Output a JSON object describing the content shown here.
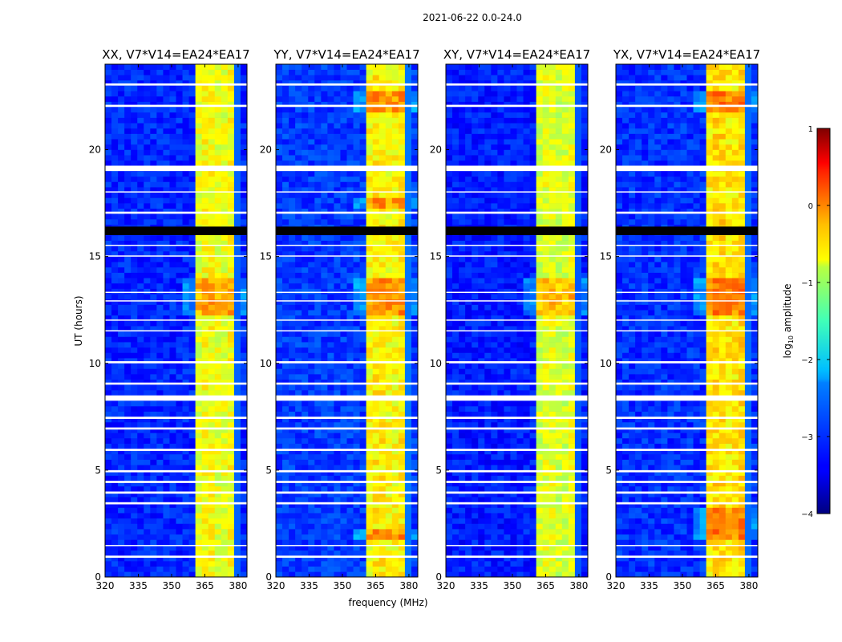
{
  "suptitle": "2021-06-22 0.0-24.0",
  "xlabel": "frequency (MHz)",
  "ylabel": "UT (hours)",
  "colorbar": {
    "label": "log$_{10}$ amplitude",
    "label_main": "log",
    "label_sub": "10",
    "label_rest": " amplitude",
    "min": -4,
    "max": 1,
    "ticks": [
      -4,
      -3,
      -2,
      -1,
      0,
      1
    ],
    "tick_labels": [
      "−4",
      "−3",
      "−2",
      "−1",
      "0",
      "1"
    ],
    "colormap": "jet"
  },
  "chart_data": [
    {
      "type": "heatmap",
      "title": "XX, V7*V14=EA24*EA17",
      "pol": "XX",
      "xlabel": "frequency (MHz)",
      "ylabel": "UT (hours)",
      "xlim": [
        320,
        384
      ],
      "ylim": [
        0,
        24
      ],
      "xticks": [
        320,
        335,
        350,
        365,
        380
      ],
      "yticks": [
        0,
        5,
        10,
        15,
        20
      ],
      "z_units": "log10 amplitude",
      "background_level": -3.2,
      "signal_band_mhz": [
        360,
        380
      ],
      "signal_level": -1.0,
      "bright_periods_hours": [
        [
          12.2,
          14.0
        ]
      ],
      "flagged_hours": [
        [
          0.9,
          1.0
        ],
        [
          1.45,
          1.5
        ],
        [
          3.4,
          3.5
        ],
        [
          3.9,
          4.0
        ],
        [
          4.4,
          4.5
        ],
        [
          4.9,
          5.0
        ],
        [
          5.9,
          6.0
        ],
        [
          6.9,
          7.0
        ],
        [
          7.4,
          7.5
        ],
        [
          8.25,
          8.5
        ],
        [
          9.0,
          9.1
        ],
        [
          10.0,
          10.1
        ],
        [
          11.5,
          11.55
        ],
        [
          12.0,
          12.05
        ],
        [
          12.9,
          12.95
        ],
        [
          13.3,
          13.35
        ],
        [
          15.0,
          15.05
        ],
        [
          15.5,
          15.55
        ],
        [
          16.0,
          16.4
        ],
        [
          17.0,
          17.1
        ],
        [
          18.0,
          18.05
        ],
        [
          19.0,
          19.25
        ],
        [
          22.0,
          22.1
        ],
        [
          23.0,
          23.1
        ]
      ]
    },
    {
      "type": "heatmap",
      "title": "YY, V7*V14=EA24*EA17",
      "pol": "YY",
      "xlabel": "frequency (MHz)",
      "ylabel": "UT (hours)",
      "xlim": [
        320,
        384
      ],
      "ylim": [
        0,
        24
      ],
      "xticks": [
        320,
        335,
        350,
        365,
        380
      ],
      "yticks": [
        0,
        5,
        10,
        15,
        20
      ],
      "z_units": "log10 amplitude",
      "background_level": -3.1,
      "signal_band_mhz": [
        360,
        380
      ],
      "signal_level": -0.9,
      "bright_periods_hours": [
        [
          12.2,
          14.0
        ],
        [
          1.8,
          2.2
        ],
        [
          21.8,
          22.8
        ],
        [
          17.2,
          17.8
        ]
      ],
      "flagged_hours": [
        [
          0.9,
          1.0
        ],
        [
          1.45,
          1.5
        ],
        [
          3.4,
          3.5
        ],
        [
          3.9,
          4.0
        ],
        [
          4.4,
          4.5
        ],
        [
          4.9,
          5.0
        ],
        [
          5.9,
          6.0
        ],
        [
          6.9,
          7.0
        ],
        [
          7.4,
          7.5
        ],
        [
          8.25,
          8.5
        ],
        [
          9.0,
          9.1
        ],
        [
          10.0,
          10.1
        ],
        [
          11.5,
          11.55
        ],
        [
          12.0,
          12.05
        ],
        [
          12.9,
          12.95
        ],
        [
          13.3,
          13.35
        ],
        [
          15.0,
          15.05
        ],
        [
          15.5,
          15.55
        ],
        [
          16.0,
          16.4
        ],
        [
          17.0,
          17.1
        ],
        [
          18.0,
          18.05
        ],
        [
          19.0,
          19.25
        ],
        [
          22.0,
          22.1
        ],
        [
          23.0,
          23.1
        ]
      ]
    },
    {
      "type": "heatmap",
      "title": "XY, V7*V14=EA24*EA17",
      "pol": "XY",
      "xlabel": "frequency (MHz)",
      "ylabel": "UT (hours)",
      "xlim": [
        320,
        384
      ],
      "ylim": [
        0,
        24
      ],
      "xticks": [
        320,
        335,
        350,
        365,
        380
      ],
      "yticks": [
        0,
        5,
        10,
        15,
        20
      ],
      "z_units": "log10 amplitude",
      "background_level": -3.25,
      "signal_band_mhz": [
        360,
        380
      ],
      "signal_level": -1.1,
      "bright_periods_hours": [
        [
          12.2,
          14.0
        ]
      ],
      "flagged_hours": [
        [
          0.9,
          1.0
        ],
        [
          1.45,
          1.5
        ],
        [
          3.4,
          3.5
        ],
        [
          3.9,
          4.0
        ],
        [
          4.4,
          4.5
        ],
        [
          4.9,
          5.0
        ],
        [
          5.9,
          6.0
        ],
        [
          6.9,
          7.0
        ],
        [
          7.4,
          7.5
        ],
        [
          8.25,
          8.5
        ],
        [
          9.0,
          9.1
        ],
        [
          10.0,
          10.1
        ],
        [
          11.5,
          11.55
        ],
        [
          12.0,
          12.05
        ],
        [
          12.9,
          12.95
        ],
        [
          13.3,
          13.35
        ],
        [
          15.0,
          15.05
        ],
        [
          15.5,
          15.55
        ],
        [
          16.0,
          16.4
        ],
        [
          17.0,
          17.1
        ],
        [
          18.0,
          18.05
        ],
        [
          19.0,
          19.25
        ],
        [
          22.0,
          22.1
        ],
        [
          23.0,
          23.1
        ]
      ]
    },
    {
      "type": "heatmap",
      "title": "YX, V7*V14=EA24*EA17",
      "pol": "YX",
      "xlabel": "frequency (MHz)",
      "ylabel": "UT (hours)",
      "xlim": [
        320,
        384
      ],
      "ylim": [
        0,
        24
      ],
      "xticks": [
        320,
        335,
        350,
        365,
        380
      ],
      "yticks": [
        0,
        5,
        10,
        15,
        20
      ],
      "z_units": "log10 amplitude",
      "background_level": -3.15,
      "signal_band_mhz": [
        360,
        380
      ],
      "signal_level": -0.8,
      "bright_periods_hours": [
        [
          12.2,
          14.0
        ],
        [
          1.8,
          3.2
        ],
        [
          21.8,
          22.8
        ]
      ],
      "flagged_hours": [
        [
          0.9,
          1.0
        ],
        [
          1.45,
          1.5
        ],
        [
          3.4,
          3.5
        ],
        [
          3.9,
          4.0
        ],
        [
          4.4,
          4.5
        ],
        [
          4.9,
          5.0
        ],
        [
          5.9,
          6.0
        ],
        [
          6.9,
          7.0
        ],
        [
          7.4,
          7.5
        ],
        [
          8.25,
          8.5
        ],
        [
          9.0,
          9.1
        ],
        [
          10.0,
          10.1
        ],
        [
          11.5,
          11.55
        ],
        [
          12.0,
          12.05
        ],
        [
          12.9,
          12.95
        ],
        [
          13.3,
          13.35
        ],
        [
          15.0,
          15.05
        ],
        [
          15.5,
          15.55
        ],
        [
          16.0,
          16.4
        ],
        [
          17.0,
          17.1
        ],
        [
          18.0,
          18.05
        ],
        [
          19.0,
          19.25
        ],
        [
          22.0,
          22.1
        ],
        [
          23.0,
          23.1
        ]
      ]
    }
  ]
}
